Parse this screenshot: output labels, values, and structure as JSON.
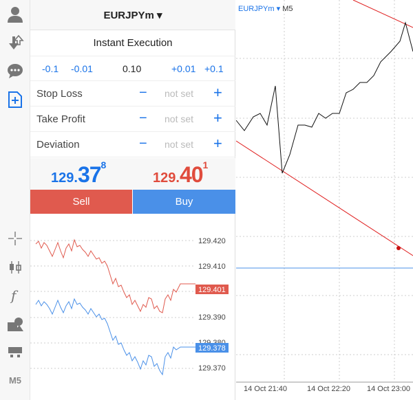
{
  "toolbar": {
    "timeframe_label": "M5"
  },
  "order": {
    "symbol": "EURJPYm ▾",
    "execution_mode": "Instant Execution",
    "volume": {
      "dec_large": "-0.1",
      "dec_small": "-0.01",
      "value": "0.10",
      "inc_small": "+0.01",
      "inc_large": "+0.1"
    },
    "params": [
      {
        "label": "Stop Loss",
        "minus": "−",
        "value": "not set",
        "plus": "+"
      },
      {
        "label": "Take Profit",
        "minus": "−",
        "value": "not set",
        "plus": "+"
      },
      {
        "label": "Deviation",
        "minus": "−",
        "value": "not set",
        "plus": "+"
      }
    ],
    "bid": {
      "prefix": "129.",
      "big": "37",
      "sup": "8"
    },
    "ask": {
      "prefix": "129.",
      "big": "40",
      "sup": "1"
    },
    "sell_label": "Sell",
    "buy_label": "Buy"
  },
  "tick_chart": {
    "price_levels": [
      "129.420",
      "129.410",
      "129.390",
      "129.380",
      "129.370"
    ],
    "ask_tag": "129.401",
    "bid_tag": "129.378",
    "ask_color": "#e05a4e",
    "bid_color": "#4a90e8"
  },
  "main_chart": {
    "symbol": "EURJPYm ▾",
    "timeframe": "M5",
    "time_labels": [
      "14 Oct 21:40",
      "14 Oct 22:20",
      "14 Oct 23:00"
    ],
    "price_color": "#111111",
    "trendline_color": "#e02020",
    "hline_color": "#4a90e8"
  }
}
